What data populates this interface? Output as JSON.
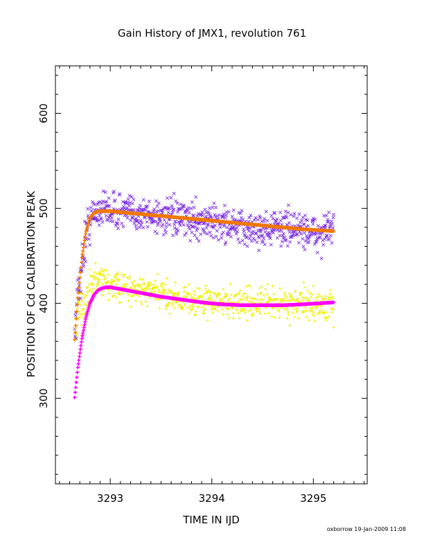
{
  "chart_data": {
    "type": "scatter",
    "title": "Gain History of JMX1, revolution 761",
    "xlabel": "TIME IN IJD",
    "ylabel": "POSITION OF Cd CALIBRATION PEAK",
    "xlim": [
      3292.46,
      3295.53
    ],
    "ylim": [
      210,
      650
    ],
    "xticks": [
      3293,
      3294,
      3295
    ],
    "xtick_labels": [
      "3293",
      "3294",
      "3295"
    ],
    "yticks": [
      300,
      400,
      500,
      600
    ],
    "ytick_labels": [
      "300",
      "400",
      "500",
      "600"
    ],
    "grid": false,
    "credit": "oxborrow 19-Jan-2009 11:08",
    "series": [
      {
        "marker": "x",
        "color": "#7b2ee0",
        "noise": 13,
        "x": [
          3292.65,
          3292.68,
          3292.72,
          3292.76,
          3292.8,
          3292.85,
          3292.9,
          3292.95,
          3293.0,
          3293.1,
          3293.3,
          3293.5,
          3293.7,
          3293.9,
          3294.1,
          3294.3,
          3294.5,
          3294.7,
          3294.9,
          3295.05,
          3295.2
        ],
        "y": [
          375,
          405,
          440,
          470,
          488,
          495,
          500,
          500,
          498,
          497,
          494,
          492,
          488,
          487,
          484,
          478,
          478,
          480,
          478,
          472,
          480
        ]
      },
      {
        "marker": "+",
        "color": "#f0f000",
        "noise": 11,
        "x": [
          3292.65,
          3292.68,
          3292.72,
          3292.76,
          3292.8,
          3292.85,
          3292.9,
          3292.95,
          3293.0,
          3293.1,
          3293.3,
          3293.5,
          3293.7,
          3293.9,
          3294.1,
          3294.3,
          3294.5,
          3294.7,
          3294.9,
          3295.05,
          3295.2
        ],
        "y": [
          368,
          380,
          395,
          408,
          418,
          423,
          423,
          422,
          420,
          416,
          413,
          410,
          405,
          402,
          401,
          400,
          401,
          400,
          400,
          398,
          395
        ]
      },
      {
        "marker": "+",
        "color": "#f07800",
        "x": [
          3292.65,
          3292.68,
          3292.72,
          3292.76,
          3292.8,
          3292.84,
          3292.88,
          3292.92,
          3292.96,
          3293.0,
          3293.1,
          3293.3,
          3293.5,
          3293.7,
          3293.9,
          3294.1,
          3294.3,
          3294.5,
          3294.7,
          3294.9,
          3295.05,
          3295.2
        ],
        "y": [
          362,
          405,
          447,
          475,
          490,
          495,
          497,
          497,
          497,
          497,
          496,
          494,
          492,
          490,
          488,
          486,
          484,
          482,
          480,
          478,
          477,
          476
        ]
      },
      {
        "marker": "+",
        "color": "#ff00ff",
        "x": [
          3292.65,
          3292.68,
          3292.72,
          3292.76,
          3292.8,
          3292.84,
          3292.88,
          3292.92,
          3292.96,
          3293.0,
          3293.1,
          3293.3,
          3293.5,
          3293.7,
          3293.9,
          3294.1,
          3294.3,
          3294.5,
          3294.7,
          3294.9,
          3295.05,
          3295.2
        ],
        "y": [
          301,
          332,
          362,
          385,
          400,
          409,
          414,
          416,
          417,
          417,
          415,
          411,
          407,
          404,
          401,
          399,
          398,
          398,
          398,
          399,
          400,
          401
        ]
      }
    ]
  }
}
